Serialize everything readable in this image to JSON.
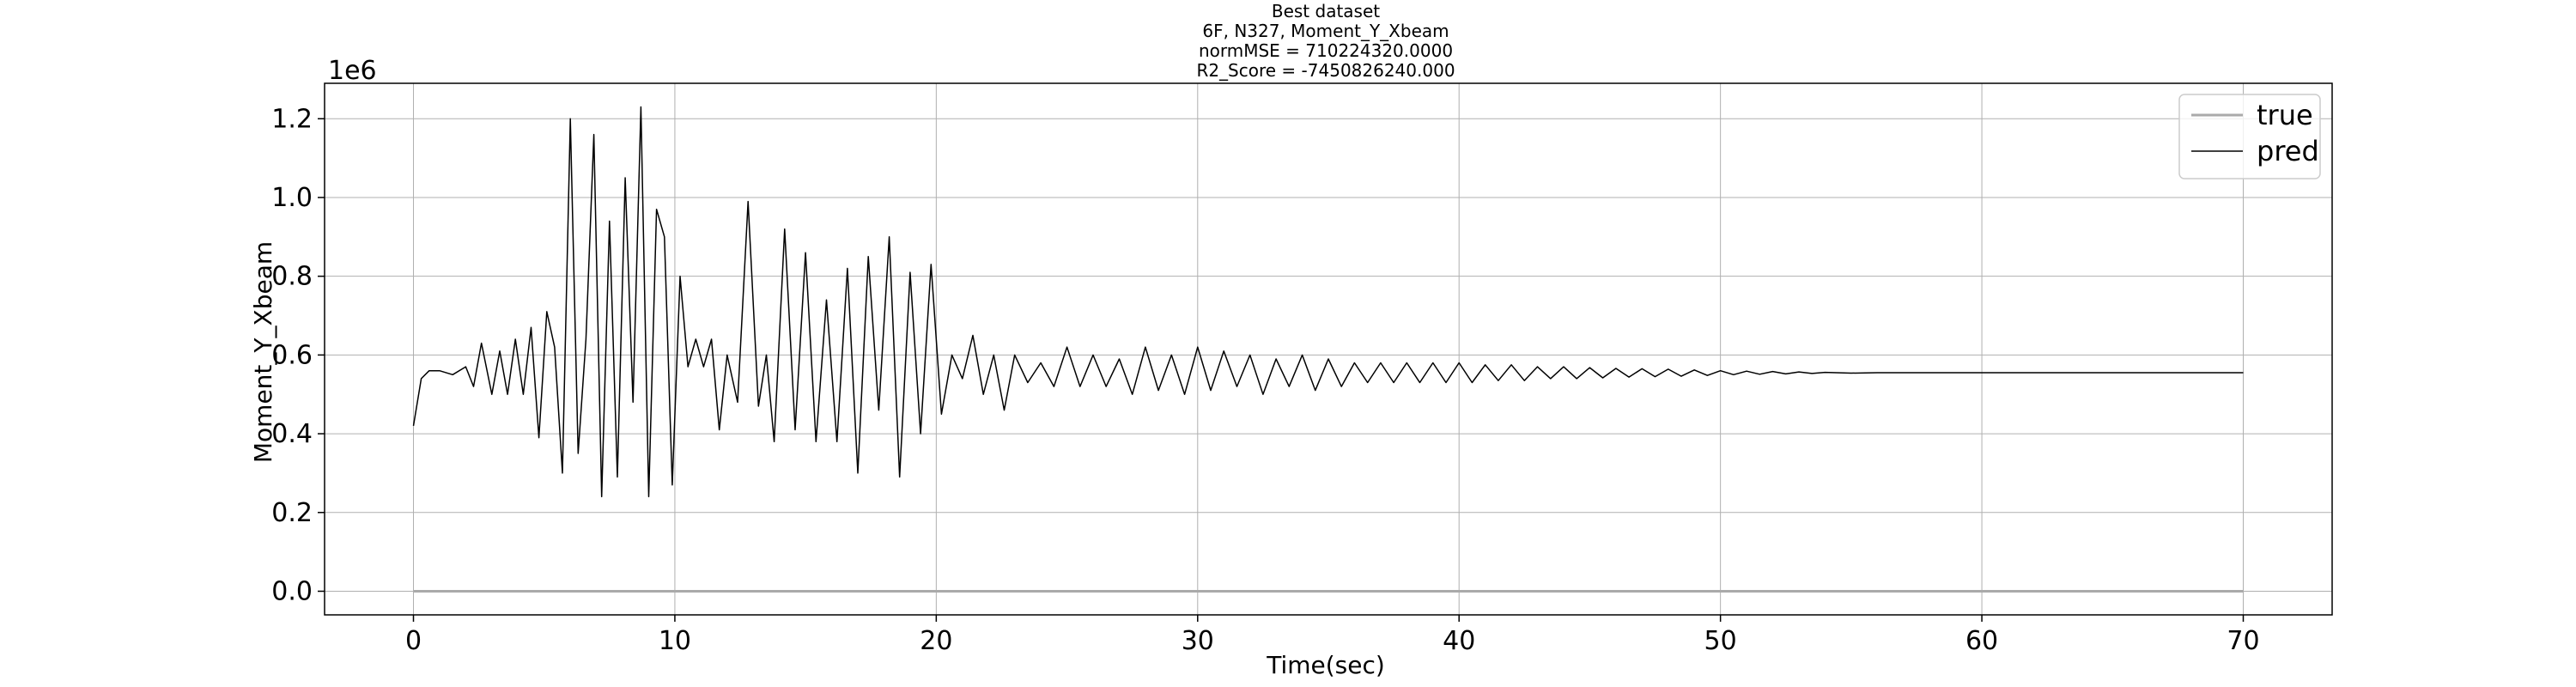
{
  "chart_data": {
    "type": "line",
    "title_lines": [
      "Best dataset",
      "6F, N327, Moment_Y_Xbeam",
      "normMSE = 710224320.0000",
      "R2_Score = -7450826240.000"
    ],
    "xlabel": "Time(sec)",
    "ylabel": "Moment_Y_Xbeam",
    "y_offset_label": "1e6",
    "xlim": [
      -3.4,
      73.4
    ],
    "ylim": [
      -0.06,
      1.29
    ],
    "xticks": [
      0,
      10,
      20,
      30,
      40,
      50,
      60,
      70
    ],
    "yticks": [
      0.0,
      0.2,
      0.4,
      0.6,
      0.8,
      1.0,
      1.2
    ],
    "ytick_labels": [
      "0.0",
      "0.2",
      "0.4",
      "0.6",
      "0.8",
      "1.0",
      "1.2"
    ],
    "grid": true,
    "legend_position": "top-right",
    "series": [
      {
        "name": "true",
        "color": "#aaaaaa",
        "x": [
          0,
          70
        ],
        "y": [
          0.0,
          0.0
        ]
      },
      {
        "name": "pred",
        "color": "#000000",
        "x": [
          0,
          0.3,
          0.6,
          1.0,
          1.5,
          2.0,
          2.3,
          2.6,
          3.0,
          3.3,
          3.6,
          3.9,
          4.2,
          4.5,
          4.8,
          5.1,
          5.4,
          5.7,
          6.0,
          6.3,
          6.6,
          6.9,
          7.2,
          7.5,
          7.8,
          8.1,
          8.4,
          8.7,
          9.0,
          9.3,
          9.6,
          9.9,
          10.2,
          10.5,
          10.8,
          11.1,
          11.4,
          11.7,
          12.0,
          12.4,
          12.8,
          13.2,
          13.5,
          13.8,
          14.2,
          14.6,
          15.0,
          15.4,
          15.8,
          16.2,
          16.6,
          17.0,
          17.4,
          17.8,
          18.2,
          18.6,
          19.0,
          19.4,
          19.8,
          20.2,
          20.6,
          21.0,
          21.4,
          21.8,
          22.2,
          22.6,
          23.0,
          23.5,
          24.0,
          24.5,
          25.0,
          25.5,
          26.0,
          26.5,
          27.0,
          27.5,
          28.0,
          28.5,
          29.0,
          29.5,
          30.0,
          30.5,
          31.0,
          31.5,
          32.0,
          32.5,
          33.0,
          33.5,
          34.0,
          34.5,
          35.0,
          35.5,
          36.0,
          36.5,
          37.0,
          37.5,
          38.0,
          38.5,
          39.0,
          39.5,
          40.0,
          40.5,
          41.0,
          41.5,
          42.0,
          42.5,
          43.0,
          43.5,
          44.0,
          44.5,
          45.0,
          45.5,
          46.0,
          46.5,
          47.0,
          47.5,
          48.0,
          48.5,
          49.0,
          49.5,
          50.0,
          50.5,
          51.0,
          51.5,
          52.0,
          52.5,
          53.0,
          53.5,
          54.0,
          55.0,
          56.0,
          57.0,
          58.0,
          60.0,
          62.0,
          64.0,
          66.0,
          68.0,
          70.0
        ],
        "y": [
          0.42,
          0.54,
          0.56,
          0.56,
          0.55,
          0.57,
          0.52,
          0.63,
          0.5,
          0.61,
          0.5,
          0.64,
          0.5,
          0.67,
          0.39,
          0.71,
          0.62,
          0.3,
          1.2,
          0.35,
          0.64,
          1.16,
          0.24,
          0.94,
          0.29,
          1.05,
          0.48,
          1.23,
          0.24,
          0.97,
          0.9,
          0.27,
          0.8,
          0.57,
          0.64,
          0.57,
          0.64,
          0.41,
          0.6,
          0.48,
          0.99,
          0.47,
          0.6,
          0.38,
          0.92,
          0.41,
          0.86,
          0.38,
          0.74,
          0.38,
          0.82,
          0.3,
          0.85,
          0.46,
          0.9,
          0.29,
          0.81,
          0.4,
          0.83,
          0.45,
          0.6,
          0.54,
          0.65,
          0.5,
          0.6,
          0.46,
          0.6,
          0.53,
          0.58,
          0.52,
          0.62,
          0.52,
          0.6,
          0.52,
          0.59,
          0.5,
          0.62,
          0.51,
          0.6,
          0.5,
          0.62,
          0.51,
          0.61,
          0.52,
          0.6,
          0.5,
          0.59,
          0.52,
          0.6,
          0.51,
          0.59,
          0.52,
          0.58,
          0.53,
          0.58,
          0.53,
          0.58,
          0.53,
          0.58,
          0.53,
          0.58,
          0.53,
          0.575,
          0.535,
          0.575,
          0.535,
          0.57,
          0.54,
          0.57,
          0.54,
          0.568,
          0.542,
          0.566,
          0.544,
          0.565,
          0.545,
          0.564,
          0.546,
          0.562,
          0.548,
          0.56,
          0.55,
          0.559,
          0.551,
          0.558,
          0.552,
          0.557,
          0.553,
          0.556,
          0.554,
          0.555,
          0.555,
          0.555,
          0.555,
          0.555,
          0.555,
          0.555,
          0.555,
          0.555
        ]
      }
    ]
  }
}
